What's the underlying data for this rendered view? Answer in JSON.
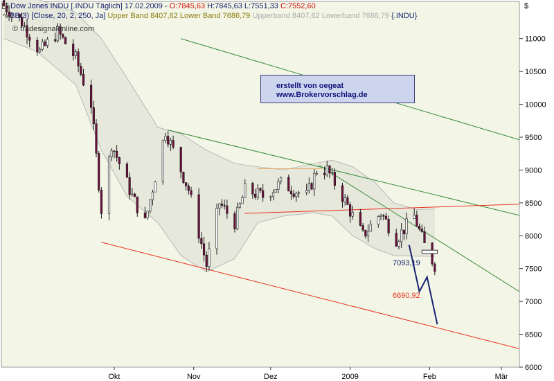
{
  "header": {
    "line1": {
      "prefix": "Dow Jones INDU [.INDU  Täglich] 17.02.2009 - ",
      "open": "O:7845,63",
      "rest": " H:7845,63 L:7551,33 ",
      "close": "C:7552,60"
    },
    "line2": {
      "prefix": "BB(3) [Close, 20, 2, 250, Ja] ",
      "upper": "Upper Band 8407,62 Lower Band 7686,79",
      "gray": " Upperband 8407,62 Lowerband 7686,79",
      "suffix": " {.INDU}"
    },
    "watermark": "© tradesignalonline.com"
  },
  "credit_box": {
    "line1": "erstellt von oegeat",
    "line2": "www.Brokervorschlag.de"
  },
  "annotations": {
    "projection_target": "7093,19",
    "channel_target": "6690,92"
  },
  "colors": {
    "plot_bg": "#f3f6e6",
    "up_candle": "#ffffff",
    "down_candle": "#6e0f3c",
    "band": "#b8b8b8",
    "green_line": "#3a8a3a",
    "red_line": "#e53020",
    "navy": "#15206e",
    "orange": "#e8b070"
  },
  "chart_data": {
    "type": "candlestick",
    "title": "Dow Jones INDU [.INDU  Täglich]",
    "currency_label": "$",
    "y_axis": {
      "ylim": [
        6000,
        11250
      ],
      "ticks": [
        6000,
        6500,
        7000,
        7500,
        8000,
        8500,
        9000,
        9500,
        10000,
        10500,
        11000
      ],
      "tick_labels": [
        "6000",
        "6500",
        "7000",
        "7500",
        "8000",
        "8500",
        "9000",
        "9500",
        "10000",
        "10500",
        "11000"
      ]
    },
    "x_axis": {
      "start_date": "2008-09-01",
      "end_date": "2009-03-22",
      "month_labels": [
        {
          "label": "Okt",
          "date": "2008-10-15"
        },
        {
          "label": "Nov",
          "date": "2008-11-15"
        },
        {
          "label": "Dez",
          "date": "2008-12-15"
        },
        {
          "label": "2009",
          "date": "2009-01-15"
        },
        {
          "label": "Feb",
          "date": "2009-02-15"
        },
        {
          "label": "Mär",
          "date": "2009-03-15"
        }
      ]
    },
    "ohlc_waypoints": [
      [
        "2008-09-02",
        11500
      ],
      [
        "2008-09-09",
        11250
      ],
      [
        "2008-09-16",
        10800
      ],
      [
        "2008-09-23",
        11100
      ],
      [
        "2008-09-30",
        10700
      ],
      [
        "2008-10-06",
        10000
      ],
      [
        "2008-10-10",
        8400
      ],
      [
        "2008-10-14",
        9400
      ],
      [
        "2008-10-22",
        8600
      ],
      [
        "2008-10-27",
        8200
      ],
      [
        "2008-11-04",
        9600
      ],
      [
        "2008-11-13",
        8700
      ],
      [
        "2008-11-20",
        7550
      ],
      [
        "2008-11-25",
        8500
      ],
      [
        "2008-12-01",
        8200
      ],
      [
        "2008-12-05",
        8700
      ],
      [
        "2008-12-12",
        8600
      ],
      [
        "2008-12-19",
        8800
      ],
      [
        "2008-12-29",
        8600
      ],
      [
        "2009-01-02",
        9000
      ],
      [
        "2009-01-06",
        9000
      ],
      [
        "2009-01-12",
        8600
      ],
      [
        "2009-01-20",
        8000
      ],
      [
        "2009-01-27",
        8350
      ],
      [
        "2009-02-02",
        7950
      ],
      [
        "2009-02-09",
        8300
      ],
      [
        "2009-02-13",
        7850
      ],
      [
        "2009-02-17",
        7552
      ]
    ],
    "bollinger": {
      "upper": [
        [
          "2008-09-02",
          11700
        ],
        [
          "2008-09-15",
          11600
        ],
        [
          "2008-09-30",
          11400
        ],
        [
          "2008-10-10",
          11000
        ],
        [
          "2008-10-20",
          10400
        ],
        [
          "2008-11-01",
          9650
        ],
        [
          "2008-11-10",
          9550
        ],
        [
          "2008-11-20",
          9300
        ],
        [
          "2008-12-01",
          9100
        ],
        [
          "2008-12-10",
          9050
        ],
        [
          "2008-12-20",
          9000
        ],
        [
          "2009-01-01",
          9100
        ],
        [
          "2009-01-08",
          9150
        ],
        [
          "2009-01-16",
          9050
        ],
        [
          "2009-01-25",
          8800
        ],
        [
          "2009-02-01",
          8500
        ],
        [
          "2009-02-10",
          8400
        ],
        [
          "2009-02-17",
          8407.62
        ]
      ],
      "lower": [
        [
          "2008-09-02",
          11000
        ],
        [
          "2008-09-15",
          10800
        ],
        [
          "2008-09-30",
          10300
        ],
        [
          "2008-10-10",
          9300
        ],
        [
          "2008-10-20",
          8600
        ],
        [
          "2008-11-01",
          8200
        ],
        [
          "2008-11-10",
          7700
        ],
        [
          "2008-11-20",
          7450
        ],
        [
          "2008-12-01",
          7650
        ],
        [
          "2008-12-10",
          8200
        ],
        [
          "2008-12-20",
          8300
        ],
        [
          "2009-01-01",
          8350
        ],
        [
          "2009-01-08",
          8300
        ],
        [
          "2009-01-16",
          8000
        ],
        [
          "2009-01-25",
          7800
        ],
        [
          "2009-02-01",
          7700
        ],
        [
          "2009-02-10",
          7690
        ],
        [
          "2009-02-17",
          7686.79
        ]
      ]
    },
    "trendlines": [
      {
        "name": "green-upper",
        "color": "green",
        "from": [
          "2008-11-10",
          11000
        ],
        "to": [
          "2009-03-22",
          9460
        ]
      },
      {
        "name": "green-middle",
        "color": "green",
        "from": [
          "2008-11-05",
          9610
        ],
        "to": [
          "2009-03-22",
          8310
        ]
      },
      {
        "name": "green-steep",
        "color": "green",
        "from": [
          "2009-01-03",
          9070
        ],
        "to": [
          "2009-03-22",
          7150
        ]
      },
      {
        "name": "red-horizontal",
        "color": "red",
        "from": [
          "2008-12-05",
          8340
        ],
        "to": [
          "2009-03-22",
          8480
        ]
      },
      {
        "name": "red-channel",
        "color": "red",
        "from": [
          "2008-10-10",
          7900
        ],
        "to": [
          "2009-03-22",
          6280
        ]
      },
      {
        "name": "orange-resistance",
        "color": "orange",
        "from": [
          "2008-12-10",
          9020
        ],
        "to": [
          "2009-01-04",
          9020
        ]
      }
    ],
    "projection": [
      [
        "2009-02-07",
        7860
      ],
      [
        "2009-02-11",
        7150
      ],
      [
        "2009-02-14",
        7370
      ],
      [
        "2009-02-18",
        6650
      ]
    ],
    "marker_box": {
      "from": [
        "2009-02-12",
        7780
      ],
      "to": [
        "2009-02-18",
        7730
      ]
    }
  }
}
